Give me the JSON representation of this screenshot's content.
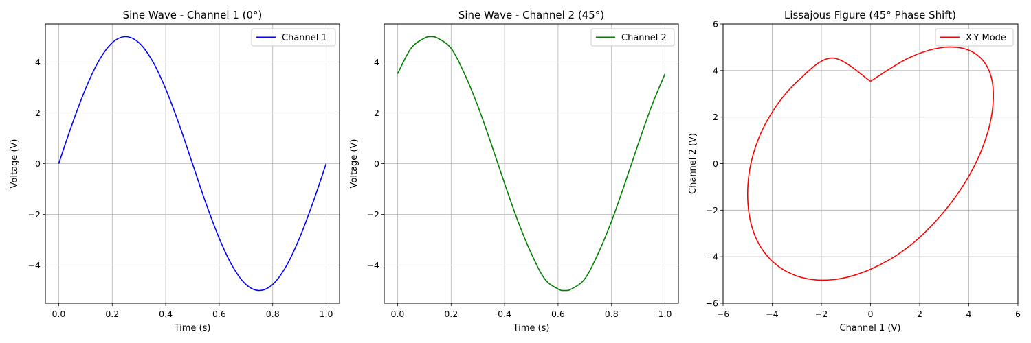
{
  "chart_data": [
    {
      "type": "line",
      "title": "Sine Wave - Channel 1 (0°)",
      "xlabel": "Time (s)",
      "ylabel": "Voltage (V)",
      "xlim": [
        -0.05,
        1.05
      ],
      "ylim": [
        -5.5,
        5.5
      ],
      "xticks": [
        0.0,
        0.2,
        0.4,
        0.6,
        0.8,
        1.0
      ],
      "xtick_labels": [
        "0.0",
        "0.2",
        "0.4",
        "0.6",
        "0.8",
        "1.0"
      ],
      "yticks": [
        -4,
        -2,
        0,
        2,
        4
      ],
      "ytick_labels": [
        "−4",
        "−2",
        "0",
        "2",
        "4"
      ],
      "grid": true,
      "legend_position": "top-right",
      "series": [
        {
          "name": "Channel 1",
          "color": "#0000ff",
          "x": [
            0.0,
            0.05,
            0.1,
            0.15,
            0.2,
            0.25,
            0.3,
            0.35,
            0.4,
            0.45,
            0.5,
            0.55,
            0.6,
            0.65,
            0.7,
            0.75,
            0.8,
            0.85,
            0.9,
            0.95,
            1.0
          ],
          "y": [
            0.0,
            1.55,
            2.94,
            4.05,
            4.76,
            5.0,
            4.76,
            4.05,
            2.94,
            1.55,
            0.0,
            -1.55,
            -2.94,
            -4.05,
            -4.76,
            -5.0,
            -4.76,
            -4.05,
            -2.94,
            -1.55,
            0.0
          ]
        }
      ]
    },
    {
      "type": "line",
      "title": "Sine Wave - Channel 2 (45°)",
      "xlabel": "Time (s)",
      "ylabel": "Voltage (V)",
      "xlim": [
        -0.05,
        1.05
      ],
      "ylim": [
        -5.5,
        5.5
      ],
      "xticks": [
        0.0,
        0.2,
        0.4,
        0.6,
        0.8,
        1.0
      ],
      "xtick_labels": [
        "0.0",
        "0.2",
        "0.4",
        "0.6",
        "0.8",
        "1.0"
      ],
      "yticks": [
        -4,
        -2,
        0,
        2,
        4
      ],
      "ytick_labels": [
        "−4",
        "−2",
        "0",
        "2",
        "4"
      ],
      "grid": true,
      "legend_position": "top-right",
      "series": [
        {
          "name": "Channel 2",
          "color": "#008000",
          "x": [
            0.0,
            0.05,
            0.1,
            0.125,
            0.15,
            0.2,
            0.25,
            0.3,
            0.35,
            0.4,
            0.45,
            0.5,
            0.55,
            0.6,
            0.625,
            0.65,
            0.7,
            0.75,
            0.8,
            0.85,
            0.9,
            0.95,
            1.0
          ],
          "y": [
            3.54,
            4.54,
            4.94,
            5.0,
            4.94,
            4.54,
            3.54,
            2.27,
            0.78,
            -0.78,
            -2.27,
            -3.54,
            -4.54,
            -4.94,
            -5.0,
            -4.94,
            -4.54,
            -3.54,
            -2.27,
            -0.78,
            0.78,
            2.27,
            3.54
          ]
        }
      ]
    },
    {
      "type": "line",
      "title": "Lissajous Figure (45° Phase Shift)",
      "xlabel": "Channel 1 (V)",
      "ylabel": "Channel 2 (V)",
      "xlim": [
        -6,
        6
      ],
      "ylim": [
        -6,
        6
      ],
      "xticks": [
        -6,
        -4,
        -2,
        0,
        2,
        4,
        6
      ],
      "xtick_labels": [
        "−6",
        "−4",
        "−2",
        "0",
        "2",
        "4",
        "6"
      ],
      "yticks": [
        -6,
        -4,
        -2,
        0,
        2,
        4,
        6
      ],
      "ytick_labels": [
        "−6",
        "−4",
        "−2",
        "0",
        "2",
        "4",
        "6"
      ],
      "grid": true,
      "legend_position": "top-right",
      "series": [
        {
          "name": "X-Y Mode",
          "color": "#ff0000",
          "x": [
            0.0,
            1.55,
            2.94,
            4.05,
            4.76,
            5.0,
            4.76,
            4.05,
            2.94,
            1.55,
            0.0,
            -1.55,
            -2.94,
            -4.05,
            -4.76,
            -5.0,
            -4.76,
            -4.05,
            -2.94,
            -1.55,
            0.0
          ],
          "y": [
            3.54,
            4.54,
            4.99,
            4.85,
            4.14,
            2.94,
            1.31,
            -0.45,
            -2.13,
            -3.57,
            -4.54,
            -4.99,
            -4.85,
            -4.14,
            -2.94,
            -1.31,
            0.45,
            2.13,
            3.57,
            4.54,
            3.54
          ]
        }
      ]
    }
  ]
}
